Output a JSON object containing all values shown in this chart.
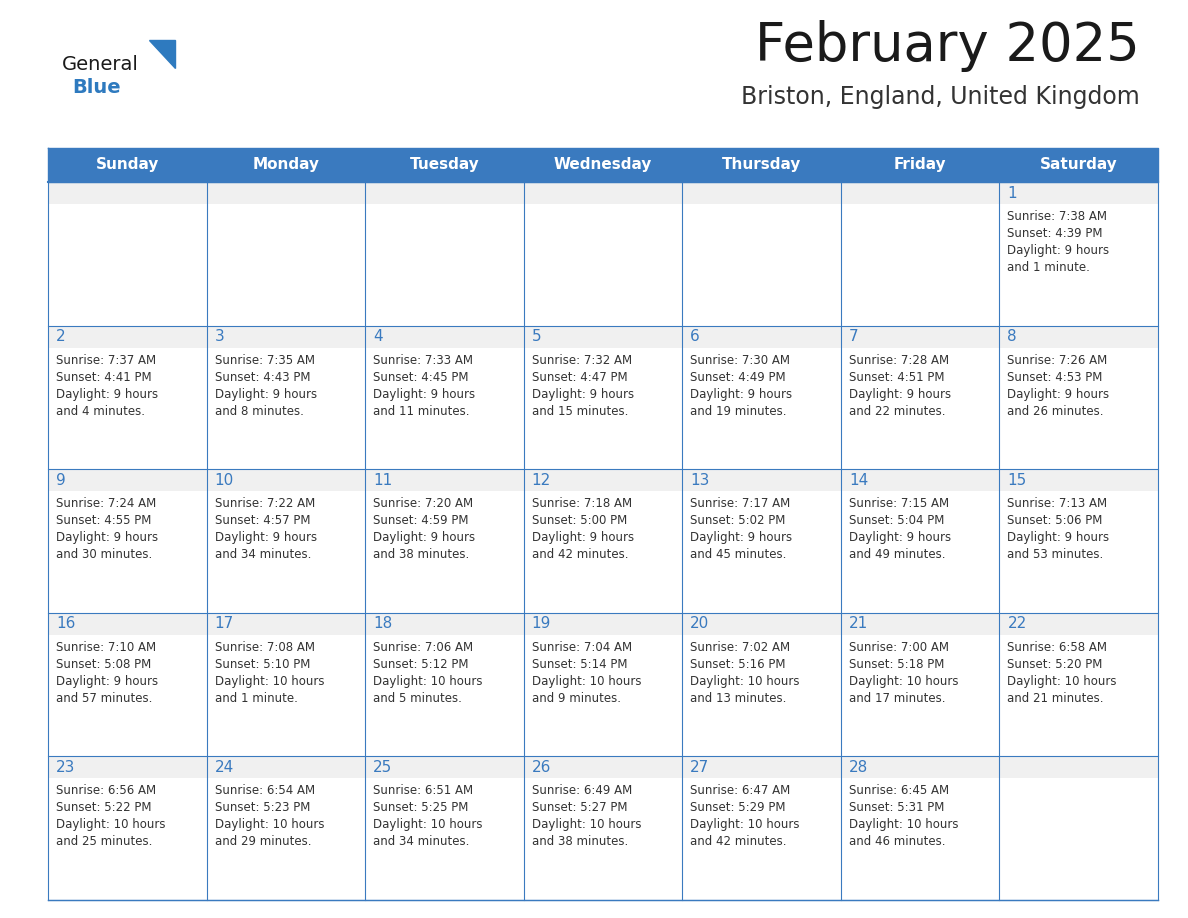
{
  "title": "February 2025",
  "subtitle": "Briston, England, United Kingdom",
  "header_bg": "#3a7abf",
  "header_text_color": "#ffffff",
  "cell_bg": "#ffffff",
  "cell_stripe_bg": "#f0f0f0",
  "border_color": "#3a7abf",
  "day_names": [
    "Sunday",
    "Monday",
    "Tuesday",
    "Wednesday",
    "Thursday",
    "Friday",
    "Saturday"
  ],
  "title_color": "#1a1a1a",
  "subtitle_color": "#333333",
  "day_number_color": "#3a7abf",
  "cell_text_color": "#333333",
  "logo_general_color": "#1a1a1a",
  "logo_blue_color": "#2e7abf",
  "days": [
    {
      "date": 1,
      "col": 6,
      "row": 0,
      "sunrise": "7:38 AM",
      "sunset": "4:39 PM",
      "daylight": "9 hours and 1 minute."
    },
    {
      "date": 2,
      "col": 0,
      "row": 1,
      "sunrise": "7:37 AM",
      "sunset": "4:41 PM",
      "daylight": "9 hours and 4 minutes."
    },
    {
      "date": 3,
      "col": 1,
      "row": 1,
      "sunrise": "7:35 AM",
      "sunset": "4:43 PM",
      "daylight": "9 hours and 8 minutes."
    },
    {
      "date": 4,
      "col": 2,
      "row": 1,
      "sunrise": "7:33 AM",
      "sunset": "4:45 PM",
      "daylight": "9 hours and 11 minutes."
    },
    {
      "date": 5,
      "col": 3,
      "row": 1,
      "sunrise": "7:32 AM",
      "sunset": "4:47 PM",
      "daylight": "9 hours and 15 minutes."
    },
    {
      "date": 6,
      "col": 4,
      "row": 1,
      "sunrise": "7:30 AM",
      "sunset": "4:49 PM",
      "daylight": "9 hours and 19 minutes."
    },
    {
      "date": 7,
      "col": 5,
      "row": 1,
      "sunrise": "7:28 AM",
      "sunset": "4:51 PM",
      "daylight": "9 hours and 22 minutes."
    },
    {
      "date": 8,
      "col": 6,
      "row": 1,
      "sunrise": "7:26 AM",
      "sunset": "4:53 PM",
      "daylight": "9 hours and 26 minutes."
    },
    {
      "date": 9,
      "col": 0,
      "row": 2,
      "sunrise": "7:24 AM",
      "sunset": "4:55 PM",
      "daylight": "9 hours and 30 minutes."
    },
    {
      "date": 10,
      "col": 1,
      "row": 2,
      "sunrise": "7:22 AM",
      "sunset": "4:57 PM",
      "daylight": "9 hours and 34 minutes."
    },
    {
      "date": 11,
      "col": 2,
      "row": 2,
      "sunrise": "7:20 AM",
      "sunset": "4:59 PM",
      "daylight": "9 hours and 38 minutes."
    },
    {
      "date": 12,
      "col": 3,
      "row": 2,
      "sunrise": "7:18 AM",
      "sunset": "5:00 PM",
      "daylight": "9 hours and 42 minutes."
    },
    {
      "date": 13,
      "col": 4,
      "row": 2,
      "sunrise": "7:17 AM",
      "sunset": "5:02 PM",
      "daylight": "9 hours and 45 minutes."
    },
    {
      "date": 14,
      "col": 5,
      "row": 2,
      "sunrise": "7:15 AM",
      "sunset": "5:04 PM",
      "daylight": "9 hours and 49 minutes."
    },
    {
      "date": 15,
      "col": 6,
      "row": 2,
      "sunrise": "7:13 AM",
      "sunset": "5:06 PM",
      "daylight": "9 hours and 53 minutes."
    },
    {
      "date": 16,
      "col": 0,
      "row": 3,
      "sunrise": "7:10 AM",
      "sunset": "5:08 PM",
      "daylight": "9 hours and 57 minutes."
    },
    {
      "date": 17,
      "col": 1,
      "row": 3,
      "sunrise": "7:08 AM",
      "sunset": "5:10 PM",
      "daylight": "10 hours and 1 minute."
    },
    {
      "date": 18,
      "col": 2,
      "row": 3,
      "sunrise": "7:06 AM",
      "sunset": "5:12 PM",
      "daylight": "10 hours and 5 minutes."
    },
    {
      "date": 19,
      "col": 3,
      "row": 3,
      "sunrise": "7:04 AM",
      "sunset": "5:14 PM",
      "daylight": "10 hours and 9 minutes."
    },
    {
      "date": 20,
      "col": 4,
      "row": 3,
      "sunrise": "7:02 AM",
      "sunset": "5:16 PM",
      "daylight": "10 hours and 13 minutes."
    },
    {
      "date": 21,
      "col": 5,
      "row": 3,
      "sunrise": "7:00 AM",
      "sunset": "5:18 PM",
      "daylight": "10 hours and 17 minutes."
    },
    {
      "date": 22,
      "col": 6,
      "row": 3,
      "sunrise": "6:58 AM",
      "sunset": "5:20 PM",
      "daylight": "10 hours and 21 minutes."
    },
    {
      "date": 23,
      "col": 0,
      "row": 4,
      "sunrise": "6:56 AM",
      "sunset": "5:22 PM",
      "daylight": "10 hours and 25 minutes."
    },
    {
      "date": 24,
      "col": 1,
      "row": 4,
      "sunrise": "6:54 AM",
      "sunset": "5:23 PM",
      "daylight": "10 hours and 29 minutes."
    },
    {
      "date": 25,
      "col": 2,
      "row": 4,
      "sunrise": "6:51 AM",
      "sunset": "5:25 PM",
      "daylight": "10 hours and 34 minutes."
    },
    {
      "date": 26,
      "col": 3,
      "row": 4,
      "sunrise": "6:49 AM",
      "sunset": "5:27 PM",
      "daylight": "10 hours and 38 minutes."
    },
    {
      "date": 27,
      "col": 4,
      "row": 4,
      "sunrise": "6:47 AM",
      "sunset": "5:29 PM",
      "daylight": "10 hours and 42 minutes."
    },
    {
      "date": 28,
      "col": 5,
      "row": 4,
      "sunrise": "6:45 AM",
      "sunset": "5:31 PM",
      "daylight": "10 hours and 46 minutes."
    }
  ]
}
